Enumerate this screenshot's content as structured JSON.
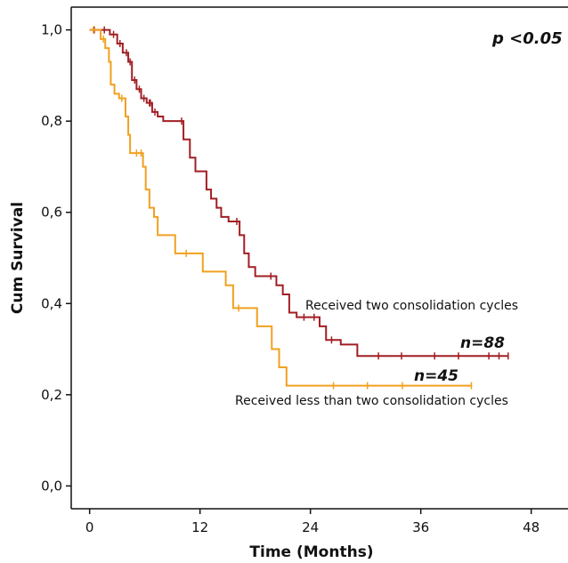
{
  "chart_data": {
    "type": "line",
    "title": "",
    "xlabel": "Time (Months)",
    "ylabel": "Cum Survival",
    "xlim": [
      -2,
      52
    ],
    "ylim": [
      -0.05,
      1.05
    ],
    "x_ticks": [
      0,
      12,
      24,
      36,
      48
    ],
    "x_tick_labels": [
      "0",
      "12",
      "24",
      "36",
      "48"
    ],
    "y_ticks": [
      0,
      0.2,
      0.4,
      0.6,
      0.8,
      1.0
    ],
    "y_tick_labels": [
      "0,0",
      "0,2",
      "0,4",
      "0,6",
      "0,8",
      "1,0"
    ],
    "grid": false,
    "series": [
      {
        "label": "Received two consolidation cycles",
        "color": "#a11f24",
        "n_label": "n=88",
        "steps": [
          [
            0,
            1.0
          ],
          [
            2.2,
            0.99
          ],
          [
            3.0,
            0.97
          ],
          [
            3.6,
            0.95
          ],
          [
            4.2,
            0.93
          ],
          [
            4.6,
            0.89
          ],
          [
            5.1,
            0.87
          ],
          [
            5.6,
            0.85
          ],
          [
            6.2,
            0.84
          ],
          [
            6.8,
            0.82
          ],
          [
            7.4,
            0.81
          ],
          [
            8.0,
            0.8
          ],
          [
            10.2,
            0.76
          ],
          [
            10.9,
            0.72
          ],
          [
            11.5,
            0.69
          ],
          [
            12.7,
            0.65
          ],
          [
            13.2,
            0.63
          ],
          [
            13.8,
            0.61
          ],
          [
            14.3,
            0.59
          ],
          [
            15.1,
            0.58
          ],
          [
            16.3,
            0.55
          ],
          [
            16.8,
            0.51
          ],
          [
            17.3,
            0.48
          ],
          [
            18.0,
            0.46
          ],
          [
            20.3,
            0.44
          ],
          [
            21.0,
            0.42
          ],
          [
            21.7,
            0.38
          ],
          [
            22.5,
            0.37
          ],
          [
            25.0,
            0.35
          ],
          [
            25.7,
            0.32
          ],
          [
            27.3,
            0.31
          ],
          [
            29.1,
            0.285
          ]
        ],
        "x_end": 45.5,
        "censor_x": [
          0.5,
          1.6,
          2.6,
          3.3,
          4.0,
          4.4,
          4.9,
          5.4,
          5.9,
          6.5,
          7.1,
          6.6,
          10.0,
          16.0,
          19.7,
          23.3,
          24.4,
          26.3,
          31.4,
          33.9,
          37.5,
          40.1,
          43.4,
          44.5,
          45.5
        ]
      },
      {
        "label": "Received less than two consolidation cycles",
        "color": "#f0a120",
        "n_label": "n=45",
        "steps": [
          [
            0,
            1.0
          ],
          [
            1.2,
            0.98
          ],
          [
            1.7,
            0.96
          ],
          [
            2.1,
            0.93
          ],
          [
            2.3,
            0.88
          ],
          [
            2.7,
            0.86
          ],
          [
            3.2,
            0.85
          ],
          [
            3.9,
            0.81
          ],
          [
            4.2,
            0.77
          ],
          [
            4.4,
            0.73
          ],
          [
            5.8,
            0.7
          ],
          [
            6.1,
            0.65
          ],
          [
            6.5,
            0.61
          ],
          [
            7.0,
            0.59
          ],
          [
            7.4,
            0.55
          ],
          [
            9.3,
            0.51
          ],
          [
            12.3,
            0.47
          ],
          [
            14.8,
            0.44
          ],
          [
            15.6,
            0.39
          ],
          [
            18.2,
            0.35
          ],
          [
            19.8,
            0.3
          ],
          [
            20.6,
            0.26
          ],
          [
            21.4,
            0.22
          ]
        ],
        "x_end": 41.5,
        "censor_x": [
          0.4,
          1.5,
          3.5,
          5.1,
          5.6,
          10.5,
          16.2,
          26.5,
          30.2,
          34.0,
          41.5
        ]
      }
    ],
    "annotations": {
      "p_value": "p <0.05",
      "label_two": "Received two consolidation cycles",
      "label_less": "Received less than two consolidation cycles"
    }
  }
}
